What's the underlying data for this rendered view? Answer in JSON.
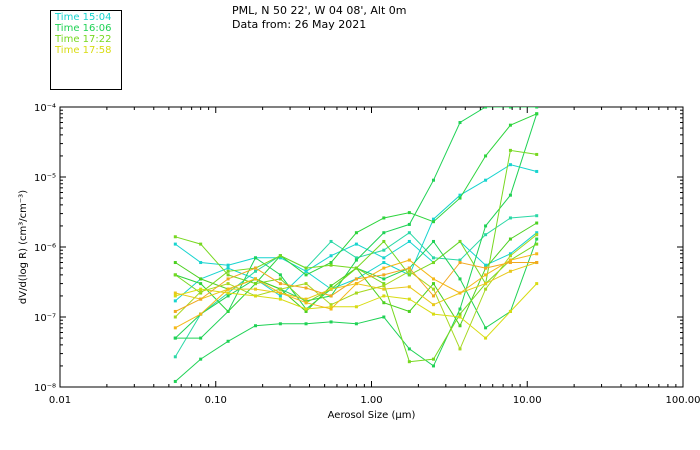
{
  "header": {
    "line1": "PML, N 50 22', W 04 08', Alt 0m",
    "line2": "Data from: 26 May 2021"
  },
  "legend": [
    {
      "label": "Time 15:04",
      "color": "#17d4cf"
    },
    {
      "label": "Time 16:06",
      "color": "#1fd255"
    },
    {
      "label": "Time 17:22",
      "color": "#77d820"
    },
    {
      "label": "Time 17:58",
      "color": "#d8dc12"
    }
  ],
  "chart_data": {
    "type": "line",
    "xscale": "log",
    "yscale": "log",
    "xlim": [
      0.01,
      100
    ],
    "ylim": [
      1e-08,
      0.0001
    ],
    "xlabel": "Aerosol Size (μm)",
    "ylabel": "dV/d(log R) (cm³/cm⁻³)",
    "xticks": [
      "0.01",
      "0.10",
      "1.00",
      "10.00",
      "100.00"
    ],
    "yticks": [
      "10⁻⁸",
      "10⁻⁷",
      "10⁻⁶",
      "10⁻⁵",
      "10⁻⁴"
    ],
    "x": [
      0.055,
      0.08,
      0.12,
      0.18,
      0.26,
      0.38,
      0.55,
      0.8,
      1.2,
      1.75,
      2.5,
      3.7,
      5.4,
      7.8,
      11.5
    ],
    "series": [
      {
        "color": "#17d4cf",
        "values": [
          1.1e-06,
          6e-07,
          5.5e-07,
          7e-07,
          7e-07,
          4.5e-07,
          2.5e-07,
          3.5e-07,
          6e-07,
          4e-07,
          2.5e-06,
          5.5e-06,
          9e-06,
          1.5e-05,
          1.2e-05
        ]
      },
      {
        "color": "#17d4cf",
        "values": [
          1.7e-07,
          3.5e-07,
          5e-07,
          3.5e-07,
          2e-07,
          4.5e-07,
          7.5e-07,
          1.1e-06,
          7e-07,
          1.2e-06,
          6e-07,
          1.2e-06,
          5.5e-07,
          8e-07,
          1.6e-06
        ]
      },
      {
        "color": "#2ad8a6",
        "values": [
          2.7e-08,
          1.1e-07,
          2.2e-07,
          4.5e-07,
          7.5e-07,
          5e-07,
          1.2e-06,
          7e-07,
          9e-07,
          1.6e-06,
          7e-07,
          6.5e-07,
          1.5e-06,
          2.6e-06,
          2.8e-06
        ]
      },
      {
        "color": "#1fd255",
        "values": [
          5e-08,
          1.1e-07,
          2e-07,
          3.5e-07,
          2.5e-07,
          1.7e-07,
          2e-07,
          6.5e-07,
          1.6e-06,
          2.1e-06,
          9e-06,
          6e-05,
          0.0001,
          0.0001,
          0.0001
        ]
      },
      {
        "color": "#1fd255",
        "values": [
          1.2e-08,
          2.5e-08,
          4.5e-08,
          7.5e-08,
          8e-08,
          8e-08,
          8.5e-08,
          8e-08,
          1e-07,
          3.5e-08,
          2e-08,
          1.3e-07,
          2e-06,
          5.5e-06,
          8e-05
        ]
      },
      {
        "color": "#1fd255",
        "values": [
          5e-08,
          5e-08,
          1.2e-07,
          7e-07,
          4e-07,
          1.3e-07,
          2.5e-07,
          5e-07,
          3.5e-07,
          5e-07,
          1.2e-06,
          3.5e-07,
          7e-08,
          1.2e-07,
          1.3e-06
        ]
      },
      {
        "color": "#2dd43c",
        "values": [
          4e-07,
          3e-07,
          1.2e-07,
          3e-07,
          7.5e-07,
          4e-07,
          6e-07,
          1.6e-06,
          2.6e-06,
          3.1e-06,
          2.3e-06,
          5e-06,
          2e-05,
          5.5e-05,
          8e-05
        ]
      },
      {
        "color": "#4cd020",
        "values": [
          6e-07,
          3.5e-07,
          2.5e-07,
          3.5e-07,
          2.5e-07,
          1.2e-07,
          2.8e-07,
          5e-07,
          1.6e-07,
          1.2e-07,
          3e-07,
          7.5e-08,
          5e-07,
          1.3e-06,
          2.2e-06
        ]
      },
      {
        "color": "#77d820",
        "values": [
          1.4e-06,
          1.1e-06,
          4e-07,
          3e-07,
          3.5e-07,
          1.6e-07,
          2.5e-07,
          5e-07,
          1.2e-06,
          4e-07,
          6e-07,
          1.2e-06,
          3e-07,
          2.4e-05,
          2.1e-05
        ]
      },
      {
        "color": "#77d820",
        "values": [
          4e-07,
          2.2e-07,
          4.5e-07,
          5e-07,
          7.5e-07,
          5e-07,
          5.5e-07,
          5e-07,
          3e-07,
          2.3e-08,
          2.5e-08,
          1.1e-07,
          3e-07,
          6.5e-07,
          1.1e-06
        ]
      },
      {
        "color": "#a6d820",
        "values": [
          1e-07,
          2.3e-07,
          3e-07,
          2e-07,
          2.5e-07,
          3e-07,
          1.5e-07,
          2.2e-07,
          2.8e-07,
          4.5e-07,
          2.5e-07,
          3.5e-08,
          2.5e-07,
          7.5e-07,
          1.5e-06
        ]
      },
      {
        "color": "#d8dc12",
        "values": [
          2e-07,
          2.5e-07,
          2.2e-07,
          2e-07,
          1.8e-07,
          1.3e-07,
          1.4e-07,
          1.4e-07,
          2e-07,
          1.8e-07,
          1.1e-07,
          1e-07,
          5e-08,
          1.2e-07,
          3e-07
        ]
      },
      {
        "color": "#e8c81a",
        "values": [
          2.2e-07,
          1.8e-07,
          2.5e-07,
          2.5e-07,
          2.2e-07,
          1.8e-07,
          2.5e-07,
          3e-07,
          2.5e-07,
          2.7e-07,
          1.5e-07,
          2.2e-07,
          3e-07,
          4.5e-07,
          6e-07
        ]
      },
      {
        "color": "#f0a820",
        "values": [
          1.2e-07,
          1.8e-07,
          3.5e-07,
          5e-07,
          3e-07,
          2.6e-07,
          2e-07,
          3.5e-07,
          4e-07,
          5e-07,
          2e-07,
          6e-07,
          5e-07,
          6e-07,
          6e-07
        ]
      },
      {
        "color": "#f4b818",
        "values": [
          7e-08,
          1.1e-07,
          2.5e-07,
          3.5e-07,
          2.2e-07,
          1.6e-07,
          1.3e-07,
          3e-07,
          5e-07,
          6.5e-07,
          3.5e-07,
          2.2e-07,
          4e-07,
          6.5e-07,
          8e-07
        ]
      }
    ]
  }
}
